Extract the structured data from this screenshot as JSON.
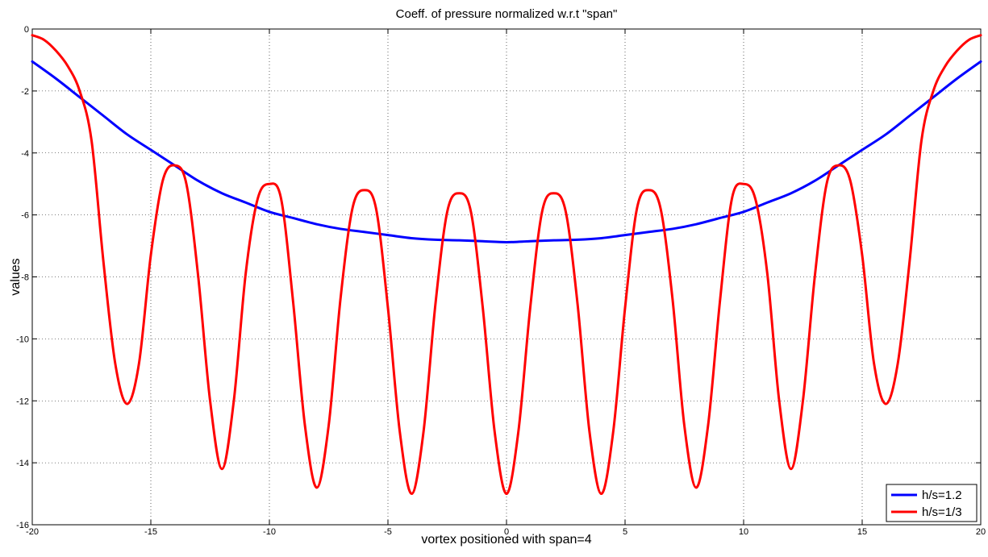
{
  "chart_data": {
    "type": "line",
    "title": "Coeff. of pressure normalized w.r.t \"span\"",
    "xlabel": "vortex positioned with span=4",
    "ylabel": "values",
    "xlim": [
      -20,
      20
    ],
    "ylim": [
      -16,
      0
    ],
    "xticks": [
      -20,
      -15,
      -10,
      -5,
      0,
      5,
      10,
      15,
      20
    ],
    "yticks": [
      0,
      -2,
      -4,
      -6,
      -8,
      -10,
      -12,
      -14,
      -16
    ],
    "grid": true,
    "legend_position": "bottom-right",
    "series": [
      {
        "name": "h/s=1.2",
        "color": "#0000ff",
        "x": [
          -20,
          -19,
          -18,
          -17,
          -16,
          -15,
          -14,
          -13,
          -12,
          -11,
          -10,
          -9,
          -8,
          -7,
          -6,
          -5,
          -4,
          -3,
          -2,
          -1,
          0,
          1,
          2,
          3,
          4,
          5,
          6,
          7,
          8,
          9,
          10,
          11,
          12,
          13,
          14,
          15,
          16,
          17,
          18,
          19,
          20
        ],
        "y": [
          -1.05,
          -1.6,
          -2.2,
          -2.8,
          -3.4,
          -3.9,
          -4.4,
          -4.9,
          -5.3,
          -5.6,
          -5.9,
          -6.1,
          -6.3,
          -6.45,
          -6.55,
          -6.65,
          -6.75,
          -6.8,
          -6.82,
          -6.85,
          -6.88,
          -6.85,
          -6.82,
          -6.8,
          -6.75,
          -6.65,
          -6.55,
          -6.45,
          -6.3,
          -6.1,
          -5.9,
          -5.6,
          -5.3,
          -4.9,
          -4.4,
          -3.9,
          -3.4,
          -2.8,
          -2.2,
          -1.6,
          -1.05
        ]
      },
      {
        "name": "h/s=1/3",
        "color": "#ff0000",
        "x": [
          -20,
          -19.5,
          -19,
          -18.5,
          -18,
          -17.5,
          -17,
          -16.5,
          -16,
          -15.5,
          -15,
          -14.5,
          -14,
          -13.5,
          -13,
          -12.5,
          -12,
          -11.5,
          -11,
          -10.5,
          -10,
          -9.5,
          -9,
          -8.5,
          -8,
          -7.5,
          -7,
          -6.5,
          -6,
          -5.5,
          -5,
          -4.5,
          -4,
          -3.5,
          -3,
          -2.5,
          -2,
          -1.5,
          -1,
          -0.5,
          0,
          0.5,
          1,
          1.5,
          2,
          2.5,
          3,
          3.5,
          4,
          4.5,
          5,
          5.5,
          6,
          6.5,
          7,
          7.5,
          8,
          8.5,
          9,
          9.5,
          10,
          10.5,
          11,
          11.5,
          12,
          12.5,
          13,
          13.5,
          14,
          14.5,
          15,
          15.5,
          16,
          16.5,
          17,
          17.5,
          18,
          18.5,
          19,
          19.5,
          20
        ],
        "y": [
          -0.2,
          -0.35,
          -0.7,
          -1.2,
          -2.0,
          -3.6,
          -7.5,
          -10.8,
          -12.1,
          -10.8,
          -7.3,
          -4.9,
          -4.4,
          -5.0,
          -8.0,
          -12.0,
          -14.2,
          -12.0,
          -7.9,
          -5.5,
          -5.0,
          -5.5,
          -8.8,
          -12.8,
          -14.8,
          -12.8,
          -8.7,
          -5.8,
          -5.2,
          -5.8,
          -9.0,
          -13.0,
          -15.0,
          -13.0,
          -8.9,
          -5.9,
          -5.3,
          -5.9,
          -9.0,
          -13.0,
          -15.0,
          -13.0,
          -9.0,
          -5.9,
          -5.3,
          -5.9,
          -8.9,
          -13.0,
          -15.0,
          -13.0,
          -9.0,
          -5.8,
          -5.2,
          -5.8,
          -8.7,
          -12.8,
          -14.8,
          -12.8,
          -8.8,
          -5.5,
          -5.0,
          -5.5,
          -7.9,
          -12.0,
          -14.2,
          -12.0,
          -8.0,
          -5.0,
          -4.4,
          -4.9,
          -7.3,
          -10.8,
          -12.1,
          -10.8,
          -7.5,
          -3.6,
          -2.0,
          -1.2,
          -0.7,
          -0.35,
          -0.2
        ]
      }
    ]
  }
}
